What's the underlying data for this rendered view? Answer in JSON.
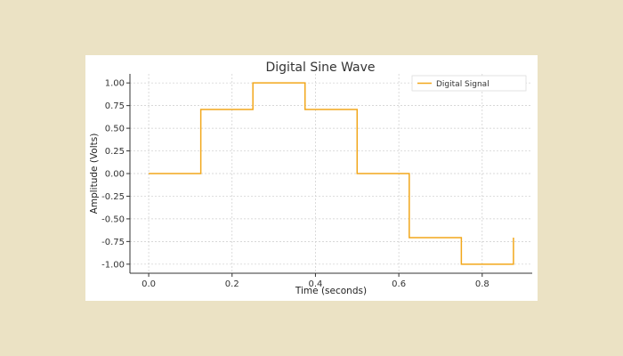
{
  "chart_data": {
    "type": "line",
    "title": "Digital Sine Wave",
    "xlabel": "Time (seconds)",
    "ylabel": "Amplitude (Volts)",
    "x_ticks": [
      "0.0",
      "0.2",
      "0.4",
      "0.6",
      "0.8"
    ],
    "y_ticks": [
      "1.00",
      "0.75",
      "0.50",
      "0.25",
      "0.00",
      "-0.25",
      "-0.50",
      "-0.75",
      "-1.00"
    ],
    "xlim": [
      -0.045,
      0.92
    ],
    "ylim": [
      -1.1,
      1.1
    ],
    "grid": true,
    "legend_position": "top-right",
    "step_style": "post",
    "series": [
      {
        "name": "Digital Signal",
        "color": "#f2a71b",
        "x": [
          0.0,
          0.125,
          0.25,
          0.375,
          0.5,
          0.625,
          0.75,
          0.875
        ],
        "y": [
          0.0,
          0.707,
          1.0,
          0.707,
          0.0,
          -0.707,
          -1.0,
          -0.707
        ]
      }
    ]
  }
}
